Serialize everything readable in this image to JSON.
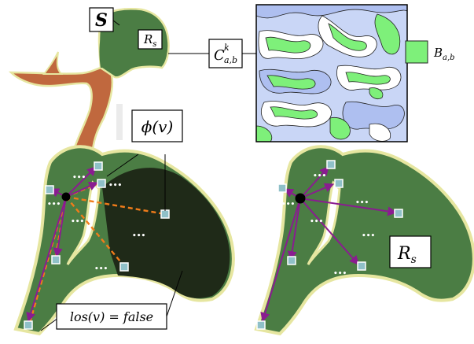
{
  "labels": {
    "s": "S",
    "rs_small": "R_s",
    "c_main": "C",
    "c_sup": "k",
    "c_sub": "a,b",
    "b_main": "B",
    "b_sub": "a,b",
    "phi": "ϕ(v)",
    "los": "los(v) = false",
    "rs_large": "R_s"
  },
  "ellipsis": "•••",
  "colors": {
    "region_green": "#4b7d44",
    "region_outline": "#e6e6a0",
    "dark_region": "#1f2a18",
    "orange_region": "#c0683e",
    "map_blue": "#aebff0",
    "map_green": "#7ef07a",
    "visible_arrow": "#8a1c90",
    "blocked_line": "#f07c1a",
    "node_fill": "#8fc0c8"
  }
}
